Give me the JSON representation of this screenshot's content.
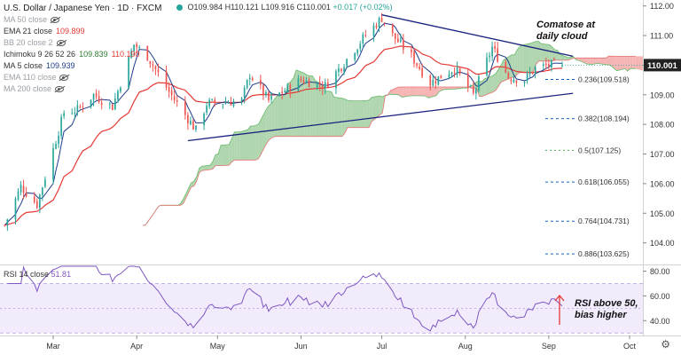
{
  "legend": {
    "title": "U.S. Dollar / Japanese Yen · 1D · FXCM",
    "ohlc": {
      "o": "O109.984",
      "h": "H110.121",
      "l": "L109.916",
      "c": "C110.001",
      "chg": "+0.017 (+0.02%)"
    },
    "indicators": [
      {
        "label": "MA 50 close",
        "value": "",
        "active": false,
        "color": "#9aa0a6"
      },
      {
        "label": "EMA 21 close",
        "value": "109.899",
        "active": true,
        "color": "#e53935"
      },
      {
        "label": "BB 20 close 2",
        "value": "",
        "active": false,
        "color": "#9aa0a6"
      },
      {
        "label": "Ichimoku 9 26 52 26",
        "value": "109.839",
        "value2": "110.190",
        "active": true,
        "color": "#2e7d32",
        "color2": "#e53935"
      },
      {
        "label": "MA 5 close",
        "value": "109.939",
        "active": true,
        "color": "#1e3a8a"
      },
      {
        "label": "EMA 110 close",
        "value": "",
        "active": false,
        "color": "#9aa0a6"
      },
      {
        "label": "MA 200 close",
        "value": "",
        "active": false,
        "color": "#9aa0a6"
      }
    ]
  },
  "rsi_legend": {
    "label": "RSI 14 close",
    "value": "51.81"
  },
  "annotations": {
    "cloud_note": [
      "Comatose at",
      "daily cloud"
    ],
    "rsi_note": [
      "RSI above 50,",
      "bias higher"
    ]
  },
  "price_label": "110.001",
  "colors": {
    "up": "#26a69a",
    "down": "#ef5350",
    "cloud_bull": "#9ccc9c",
    "cloud_bear": "#f4a3a3",
    "trend": "#1a237e",
    "fib": "#1565c0",
    "rsi": "#7e57c2"
  },
  "chart_data": [
    {
      "type": "candlestick",
      "title": "U.S. Dollar / Japanese Yen · 1D · FXCM",
      "y_ticks": [
        104,
        105,
        106,
        107,
        108,
        109,
        110,
        111,
        112
      ],
      "y_tick_labels": [
        "104.00",
        "105.00",
        "106.00",
        "107.00",
        "108.00",
        "109.00",
        "110.00",
        "111.00",
        "112.00"
      ],
      "ylim": [
        103.3,
        112.2
      ],
      "x_ticks": [
        {
          "label": "Mar",
          "date": "2021-03-01"
        },
        {
          "label": "Apr",
          "date": "2021-04-01"
        },
        {
          "label": "May",
          "date": "2021-05-01"
        },
        {
          "label": "Jun",
          "date": "2021-06-01"
        },
        {
          "label": "Jul",
          "date": "2021-07-01"
        },
        {
          "label": "Aug",
          "date": "2021-08-01"
        },
        {
          "label": "Sep",
          "date": "2021-09-01"
        },
        {
          "label": "Oct",
          "date": "2021-10-01"
        }
      ],
      "close_anchors": [
        [
          "2021-02-11",
          104.6
        ],
        [
          "2021-02-17",
          105.9
        ],
        [
          "2021-02-23",
          105.3
        ],
        [
          "2021-03-05",
          108.4
        ],
        [
          "2021-03-10",
          108.5
        ],
        [
          "2021-03-16",
          109.0
        ],
        [
          "2021-03-23",
          108.6
        ],
        [
          "2021-03-31",
          110.7
        ],
        [
          "2021-04-05",
          110.3
        ],
        [
          "2021-04-13",
          109.1
        ],
        [
          "2021-04-23",
          107.8
        ],
        [
          "2021-04-27",
          108.7
        ],
        [
          "2021-05-10",
          108.8
        ],
        [
          "2021-05-13",
          109.7
        ],
        [
          "2021-05-20",
          108.8
        ],
        [
          "2021-06-01",
          109.5
        ],
        [
          "2021-06-10",
          109.3
        ],
        [
          "2021-06-18",
          110.2
        ],
        [
          "2021-06-24",
          110.9
        ],
        [
          "2021-07-01",
          111.6
        ],
        [
          "2021-07-05",
          111.0
        ],
        [
          "2021-07-12",
          110.3
        ],
        [
          "2021-07-19",
          109.4
        ],
        [
          "2021-07-28",
          109.9
        ],
        [
          "2021-08-04",
          109.0
        ],
        [
          "2021-08-11",
          110.6
        ],
        [
          "2021-08-17",
          109.6
        ],
        [
          "2021-08-23",
          109.5
        ],
        [
          "2021-08-27",
          109.9
        ],
        [
          "2021-09-01",
          110.0
        ],
        [
          "2021-09-06",
          110.001
        ]
      ],
      "fib_levels": [
        {
          "label": "0.236(109.518)",
          "value": 109.518
        },
        {
          "label": "0.382(108.194)",
          "value": 108.194
        },
        {
          "label": "0.5(107.125)",
          "value": 107.125
        },
        {
          "label": "0.618(106.055)",
          "value": 106.055
        },
        {
          "label": "0.764(104.731)",
          "value": 104.731
        },
        {
          "label": "0.886(103.625)",
          "value": 103.625
        }
      ],
      "trendlines": [
        {
          "from": [
            "2021-04-20",
            107.45
          ],
          "to": [
            "2021-09-10",
            109.05
          ]
        },
        {
          "from": [
            "2021-07-01",
            111.7
          ],
          "to": [
            "2021-09-10",
            110.3
          ]
        }
      ]
    },
    {
      "type": "line",
      "title": "RSI 14 close",
      "y_ticks": [
        40,
        60,
        80
      ],
      "y_tick_labels": [
        "40.00",
        "60.00",
        "80.00"
      ],
      "ylim": [
        28,
        84
      ],
      "band": [
        30,
        70
      ],
      "last_value": 51.81
    }
  ]
}
